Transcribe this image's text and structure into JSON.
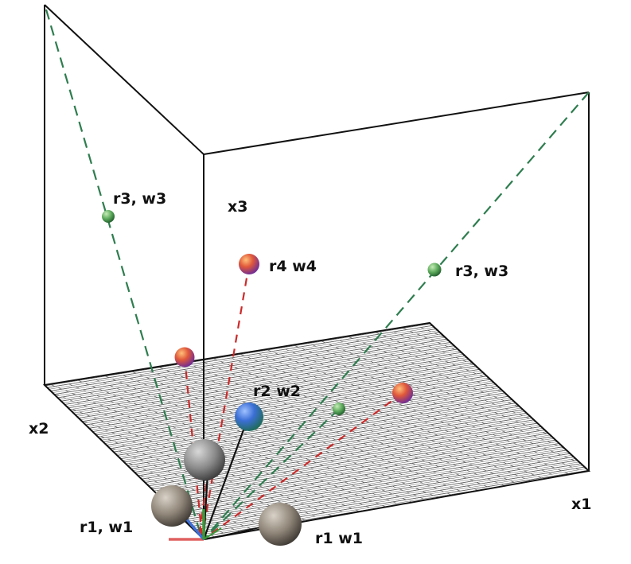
{
  "diagram": {
    "axis_labels": {
      "x1": "x1",
      "x2": "x2",
      "x3": "x3"
    },
    "point_labels": {
      "r3_w3_wall": "r3, w3",
      "r3_w3_right": "r3, w3",
      "r4_w4": "r4 w4",
      "r2_w2": "r2 w2",
      "r1_w1_left": "r1, w1",
      "r1_w1_bottom": "r1 w1"
    },
    "colors": {
      "frame": "#111111",
      "grid": "#555555",
      "green_dash": "#2e7d4f",
      "red_dash": "#cc2a2a",
      "sphere_gray": "#8a8a8a",
      "sphere_blue": "#3c6fd6",
      "sphere_red": "#e0583a",
      "sphere_green": "#5aa85a"
    }
  }
}
